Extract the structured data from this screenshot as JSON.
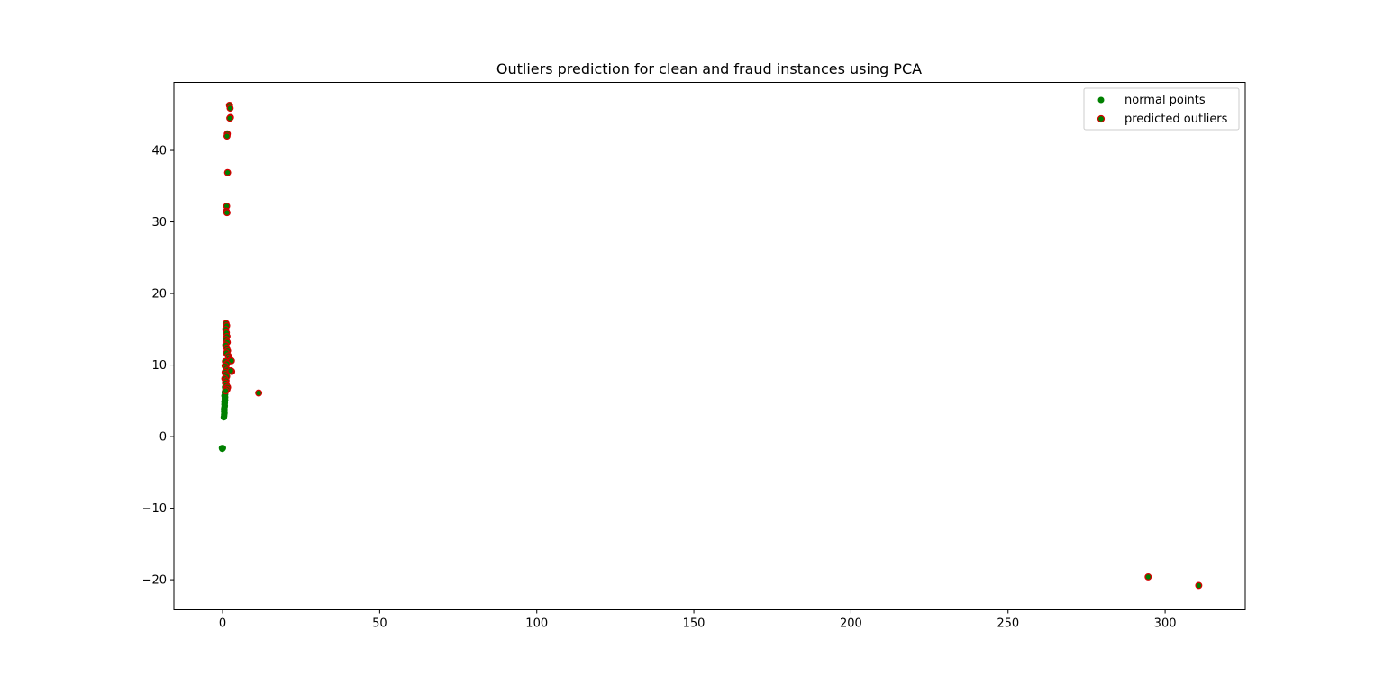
{
  "chart_data": {
    "type": "scatter",
    "title": "Outliers prediction for clean and fraud instances using PCA",
    "xlabel": "",
    "ylabel": "",
    "xlim": [
      -15.5,
      325.5
    ],
    "ylim": [
      -24.2,
      49.5
    ],
    "xticks": [
      0,
      50,
      100,
      150,
      200,
      250,
      300
    ],
    "yticks": [
      -20,
      -10,
      0,
      10,
      20,
      30,
      40
    ],
    "grid": false,
    "legend_position": "top-right",
    "series": [
      {
        "name": "normal points",
        "color": "#008000",
        "points": [
          [
            -0.2,
            -1.6
          ],
          [
            0.1,
            -1.6
          ],
          [
            -0.1,
            -1.7
          ],
          [
            0.4,
            2.7
          ],
          [
            0.5,
            2.9
          ],
          [
            0.5,
            3.1
          ],
          [
            0.6,
            3.3
          ],
          [
            0.5,
            3.5
          ],
          [
            0.6,
            3.7
          ],
          [
            0.5,
            3.9
          ],
          [
            0.6,
            4.1
          ],
          [
            0.7,
            4.3
          ],
          [
            0.6,
            4.5
          ],
          [
            0.7,
            4.7
          ],
          [
            0.6,
            4.9
          ],
          [
            0.8,
            5.1
          ],
          [
            0.7,
            5.3
          ],
          [
            0.8,
            5.5
          ],
          [
            0.6,
            5.7
          ],
          [
            0.8,
            5.9
          ],
          [
            0.7,
            6.2
          ],
          [
            0.9,
            6.5
          ],
          [
            0.8,
            6.9
          ]
        ]
      },
      {
        "name": "predicted outliers",
        "color": "#008000",
        "edge_color": "#d40000",
        "points": [
          [
            2.2,
            46.3
          ],
          [
            2.4,
            45.9
          ],
          [
            2.5,
            44.6
          ],
          [
            2.3,
            44.5
          ],
          [
            1.5,
            42.3
          ],
          [
            1.4,
            42.0
          ],
          [
            1.6,
            36.9
          ],
          [
            1.3,
            32.2
          ],
          [
            1.2,
            31.5
          ],
          [
            1.4,
            31.3
          ],
          [
            1.1,
            15.8
          ],
          [
            1.3,
            15.5
          ],
          [
            1.0,
            15.0
          ],
          [
            1.2,
            14.5
          ],
          [
            1.4,
            14.0
          ],
          [
            1.1,
            13.6
          ],
          [
            1.5,
            13.2
          ],
          [
            1.0,
            12.8
          ],
          [
            1.3,
            12.4
          ],
          [
            1.6,
            12.0
          ],
          [
            1.2,
            11.7
          ],
          [
            1.8,
            11.3
          ],
          [
            2.1,
            11.0
          ],
          [
            2.5,
            10.7
          ],
          [
            2.8,
            10.6
          ],
          [
            0.9,
            10.5
          ],
          [
            1.4,
            10.2
          ],
          [
            0.8,
            9.9
          ],
          [
            1.1,
            9.6
          ],
          [
            1.5,
            9.3
          ],
          [
            2.9,
            9.1
          ],
          [
            2.6,
            9.2
          ],
          [
            0.8,
            9.0
          ],
          [
            1.0,
            8.7
          ],
          [
            1.3,
            8.4
          ],
          [
            0.7,
            8.1
          ],
          [
            1.1,
            7.8
          ],
          [
            0.9,
            7.5
          ],
          [
            1.2,
            7.2
          ],
          [
            1.6,
            6.9
          ],
          [
            1.4,
            6.6
          ],
          [
            1.0,
            6.4
          ],
          [
            11.5,
            6.1
          ],
          [
            294.6,
            -19.6
          ],
          [
            310.7,
            -20.8
          ]
        ]
      }
    ]
  }
}
